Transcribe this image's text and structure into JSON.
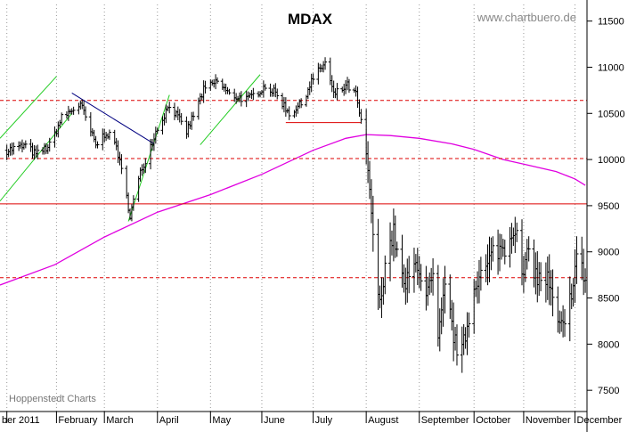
{
  "chart_data": {
    "type": "bar",
    "subtype": "ohlc-daily",
    "title": "MDAX",
    "watermark": "www.chartbuero.de",
    "credit": "Hoppenstedt Charts",
    "xlabel": "",
    "ylabel": "",
    "ylim": [
      7270,
      11680
    ],
    "x_range": [
      "2010-12-30",
      "2011-12-08"
    ],
    "y_ticks": [
      7500,
      8000,
      8500,
      9000,
      9500,
      10000,
      10500,
      11000,
      11500
    ],
    "y_tick_labels": [
      "7500",
      "8000",
      "8500",
      "9000",
      "9500",
      "10000",
      "10500",
      "11000",
      "11500"
    ],
    "x_ticks": [
      {
        "date": "2011-01-03",
        "label": "ber 2011"
      },
      {
        "date": "2011-02-01",
        "label": "February"
      },
      {
        "date": "2011-03-01",
        "label": "March"
      },
      {
        "date": "2011-04-01",
        "label": "April"
      },
      {
        "date": "2011-05-02",
        "label": "May"
      },
      {
        "date": "2011-06-01",
        "label": "June"
      },
      {
        "date": "2011-07-01",
        "label": "July"
      },
      {
        "date": "2011-08-01",
        "label": "August"
      },
      {
        "date": "2011-09-01",
        "label": "September"
      },
      {
        "date": "2011-10-03",
        "label": "October"
      },
      {
        "date": "2011-11-01",
        "label": "November"
      },
      {
        "date": "2011-12-01",
        "label": "December"
      }
    ],
    "grid": {
      "vertical": true,
      "style": "dotted",
      "horizontal": false
    },
    "price_anchors": [
      [
        "2011-01-03",
        10100
      ],
      [
        "2011-01-14",
        10150
      ],
      [
        "2011-01-20",
        10050
      ],
      [
        "2011-01-28",
        10150
      ],
      [
        "2011-02-04",
        10450
      ],
      [
        "2011-02-15",
        10600
      ],
      [
        "2011-02-24",
        10150
      ],
      [
        "2011-03-02",
        10300
      ],
      [
        "2011-03-08",
        10150
      ],
      [
        "2011-03-16",
        9400
      ],
      [
        "2011-03-22",
        9850
      ],
      [
        "2011-03-31",
        10300
      ],
      [
        "2011-04-08",
        10600
      ],
      [
        "2011-04-18",
        10300
      ],
      [
        "2011-04-28",
        10750
      ],
      [
        "2011-05-06",
        10850
      ],
      [
        "2011-05-13",
        10700
      ],
      [
        "2011-05-24",
        10650
      ],
      [
        "2011-06-03",
        10800
      ],
      [
        "2011-06-10",
        10700
      ],
      [
        "2011-06-17",
        10500
      ],
      [
        "2011-06-24",
        10600
      ],
      [
        "2011-06-30",
        10850
      ],
      [
        "2011-07-08",
        11050
      ],
      [
        "2011-07-13",
        10700
      ],
      [
        "2011-07-21",
        10800
      ],
      [
        "2011-07-26",
        10700
      ],
      [
        "2011-07-29",
        10400
      ],
      [
        "2011-08-03",
        9700
      ],
      [
        "2011-08-05",
        9100
      ],
      [
        "2011-08-09",
        8400
      ],
      [
        "2011-08-12",
        8900
      ],
      [
        "2011-08-17",
        9200
      ],
      [
        "2011-08-23",
        8600
      ],
      [
        "2011-08-31",
        8900
      ],
      [
        "2011-09-05",
        8500
      ],
      [
        "2011-09-09",
        8700
      ],
      [
        "2011-09-12",
        8000
      ],
      [
        "2011-09-16",
        8600
      ],
      [
        "2011-09-22",
        8000
      ],
      [
        "2011-09-26",
        7900
      ],
      [
        "2011-09-30",
        8300
      ],
      [
        "2011-10-04",
        8700
      ],
      [
        "2011-10-10",
        8800
      ],
      [
        "2011-10-14",
        9000
      ],
      [
        "2011-10-21",
        9050
      ],
      [
        "2011-10-27",
        9300
      ],
      [
        "2011-10-31",
        8700
      ],
      [
        "2011-11-04",
        9000
      ],
      [
        "2011-11-09",
        8700
      ],
      [
        "2011-11-15",
        8700
      ],
      [
        "2011-11-21",
        8200
      ],
      [
        "2011-11-25",
        8150
      ],
      [
        "2011-11-30",
        8700
      ],
      [
        "2011-12-02",
        8950
      ],
      [
        "2011-12-07",
        8700
      ]
    ],
    "moving_average": {
      "color": "#e000e0",
      "points": [
        [
          "2010-12-30",
          8640
        ],
        [
          "2011-01-31",
          8860
        ],
        [
          "2011-03-01",
          9160
        ],
        [
          "2011-04-01",
          9430
        ],
        [
          "2011-05-02",
          9620
        ],
        [
          "2011-06-01",
          9840
        ],
        [
          "2011-07-01",
          10100
        ],
        [
          "2011-07-20",
          10230
        ],
        [
          "2011-08-01",
          10270
        ],
        [
          "2011-08-15",
          10260
        ],
        [
          "2011-09-01",
          10230
        ],
        [
          "2011-09-20",
          10170
        ],
        [
          "2011-10-03",
          10110
        ],
        [
          "2011-10-20",
          10000
        ],
        [
          "2011-11-01",
          9950
        ],
        [
          "2011-11-20",
          9870
        ],
        [
          "2011-12-01",
          9790
        ],
        [
          "2011-12-07",
          9720
        ]
      ]
    },
    "horizontal_lines": [
      {
        "value": 10640,
        "style": "dashed",
        "color": "#dd0000"
      },
      {
        "value": 10010,
        "style": "dashed",
        "color": "#dd0000"
      },
      {
        "value": 9520,
        "style": "solid",
        "color": "#dd0000"
      },
      {
        "value": 8720,
        "style": "dashed",
        "color": "#dd0000"
      }
    ],
    "trendlines": [
      {
        "color": "#22cc22",
        "from": [
          "2010-12-30",
          10230
        ],
        "to": [
          "2011-02-01",
          10900
        ]
      },
      {
        "color": "#22cc22",
        "from": [
          "2010-12-30",
          9550
        ],
        "to": [
          "2011-02-10",
          10500
        ]
      },
      {
        "color": "#22cc22",
        "from": [
          "2011-03-15",
          9330
        ],
        "to": [
          "2011-04-08",
          10700
        ]
      },
      {
        "color": "#22cc22",
        "from": [
          "2011-04-26",
          10160
        ],
        "to": [
          "2011-05-31",
          10920
        ]
      },
      {
        "color": "#000080",
        "from": [
          "2011-02-10",
          10720
        ],
        "to": [
          "2011-03-30",
          10170
        ]
      },
      {
        "color": "#dd0000",
        "from": [
          "2011-06-15",
          10400
        ],
        "to": [
          "2011-07-29",
          10400
        ]
      }
    ]
  }
}
